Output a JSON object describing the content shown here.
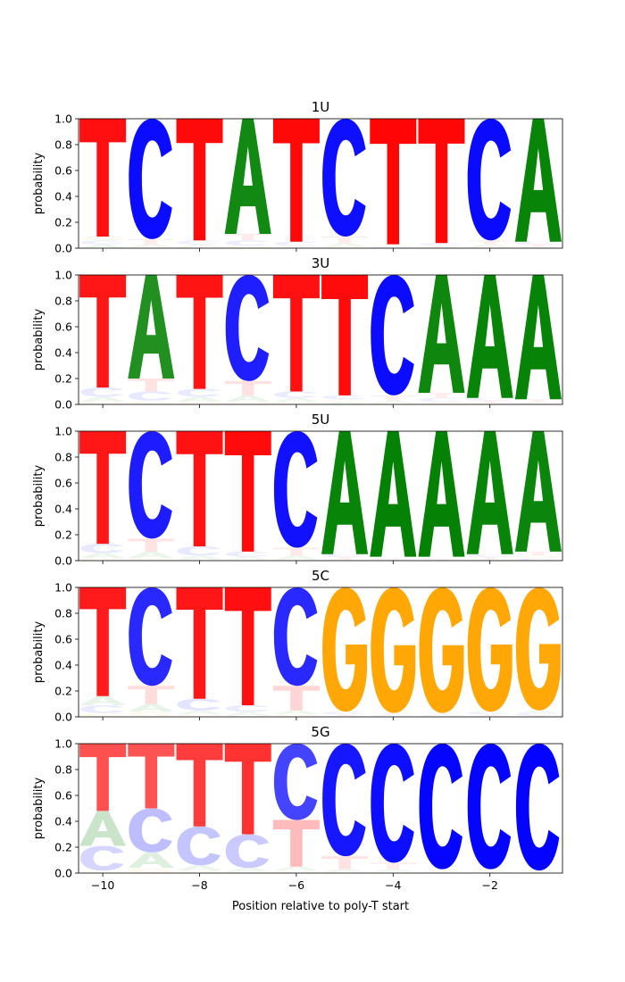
{
  "chart_data": {
    "type": "sequence-logo",
    "xlabel": "Position relative to poly-T start",
    "ylabel": "probability",
    "ylim": [
      0,
      1
    ],
    "y_ticks": [
      "0.0",
      "0.2",
      "0.4",
      "0.6",
      "0.8",
      "1.0"
    ],
    "x_ticks": [
      {
        "value": -10,
        "label": "−10"
      },
      {
        "value": -8,
        "label": "−8"
      },
      {
        "value": -6,
        "label": "−6"
      },
      {
        "value": -4,
        "label": "−4"
      },
      {
        "value": -2,
        "label": "−2"
      }
    ],
    "positions": [
      -10,
      -9,
      -8,
      -7,
      -6,
      -5,
      -4,
      -3,
      -2,
      -1
    ],
    "colors": {
      "A": "#008000",
      "C": "#0000ff",
      "G": "#ffa500",
      "T": "#ff0000"
    },
    "panels": [
      {
        "title": "1U",
        "columns": [
          {
            "T": 0.91,
            "A": 0.03,
            "C": 0.03,
            "G": 0.03
          },
          {
            "C": 0.93,
            "T": 0.04,
            "A": 0.02,
            "G": 0.01
          },
          {
            "T": 0.94,
            "C": 0.03,
            "A": 0.02,
            "G": 0.01
          },
          {
            "A": 0.89,
            "T": 0.05,
            "C": 0.04,
            "G": 0.02
          },
          {
            "T": 0.95,
            "C": 0.03,
            "A": 0.01,
            "G": 0.01
          },
          {
            "C": 0.91,
            "T": 0.05,
            "A": 0.03,
            "G": 0.01
          },
          {
            "T": 0.97,
            "C": 0.01,
            "A": 0.01,
            "G": 0.01
          },
          {
            "T": 0.96,
            "C": 0.02,
            "A": 0.01,
            "G": 0.01
          },
          {
            "C": 0.94,
            "T": 0.03,
            "A": 0.02,
            "G": 0.01
          },
          {
            "A": 0.95,
            "T": 0.02,
            "C": 0.02,
            "G": 0.01
          }
        ]
      },
      {
        "title": "3U",
        "columns": [
          {
            "T": 0.87,
            "C": 0.07,
            "A": 0.04,
            "G": 0.02
          },
          {
            "A": 0.8,
            "T": 0.1,
            "C": 0.07,
            "G": 0.03
          },
          {
            "T": 0.88,
            "C": 0.06,
            "A": 0.04,
            "G": 0.02
          },
          {
            "C": 0.82,
            "T": 0.11,
            "A": 0.05,
            "G": 0.02
          },
          {
            "T": 0.9,
            "C": 0.05,
            "A": 0.03,
            "G": 0.02
          },
          {
            "T": 0.93,
            "C": 0.03,
            "A": 0.02,
            "G": 0.02
          },
          {
            "C": 0.93,
            "T": 0.04,
            "A": 0.02,
            "G": 0.01
          },
          {
            "A": 0.91,
            "T": 0.04,
            "C": 0.03,
            "G": 0.02
          },
          {
            "A": 0.95,
            "T": 0.02,
            "C": 0.02,
            "G": 0.01
          },
          {
            "A": 0.96,
            "T": 0.02,
            "C": 0.01,
            "G": 0.01
          }
        ]
      },
      {
        "title": "5U",
        "columns": [
          {
            "T": 0.87,
            "C": 0.07,
            "A": 0.04,
            "G": 0.02
          },
          {
            "C": 0.83,
            "T": 0.1,
            "A": 0.05,
            "G": 0.02
          },
          {
            "T": 0.89,
            "C": 0.07,
            "A": 0.03,
            "G": 0.01
          },
          {
            "T": 0.93,
            "C": 0.04,
            "A": 0.02,
            "G": 0.01
          },
          {
            "C": 0.9,
            "T": 0.06,
            "A": 0.03,
            "G": 0.01
          },
          {
            "A": 0.95,
            "T": 0.02,
            "C": 0.02,
            "G": 0.01
          },
          {
            "A": 0.97,
            "T": 0.01,
            "C": 0.01,
            "G": 0.01
          },
          {
            "A": 0.97,
            "T": 0.01,
            "C": 0.01,
            "G": 0.01
          },
          {
            "A": 0.95,
            "T": 0.02,
            "C": 0.02,
            "G": 0.01
          },
          {
            "A": 0.93,
            "T": 0.03,
            "C": 0.02,
            "G": 0.02
          }
        ]
      },
      {
        "title": "5C",
        "columns": [
          {
            "T": 0.84,
            "A": 0.07,
            "C": 0.06,
            "G": 0.03
          },
          {
            "C": 0.76,
            "T": 0.14,
            "A": 0.06,
            "G": 0.04
          },
          {
            "T": 0.86,
            "C": 0.09,
            "A": 0.03,
            "G": 0.02
          },
          {
            "T": 0.91,
            "C": 0.05,
            "A": 0.03,
            "G": 0.01
          },
          {
            "C": 0.76,
            "T": 0.19,
            "A": 0.03,
            "G": 0.02
          },
          {
            "G": 0.96,
            "C": 0.02,
            "A": 0.01,
            "T": 0.01
          },
          {
            "G": 0.97,
            "C": 0.01,
            "A": 0.01,
            "T": 0.01
          },
          {
            "G": 0.97,
            "C": 0.01,
            "A": 0.01,
            "T": 0.01
          },
          {
            "G": 0.96,
            "C": 0.02,
            "A": 0.01,
            "T": 0.01
          },
          {
            "G": 0.95,
            "C": 0.02,
            "A": 0.02,
            "T": 0.01
          }
        ]
      },
      {
        "title": "5G",
        "columns": [
          {
            "T": 0.52,
            "A": 0.27,
            "C": 0.19,
            "G": 0.02
          },
          {
            "T": 0.5,
            "C": 0.34,
            "A": 0.12,
            "G": 0.04
          },
          {
            "T": 0.64,
            "C": 0.3,
            "A": 0.04,
            "G": 0.02
          },
          {
            "T": 0.7,
            "C": 0.26,
            "A": 0.03,
            "G": 0.01
          },
          {
            "C": 0.59,
            "T": 0.36,
            "A": 0.03,
            "G": 0.02
          },
          {
            "C": 0.87,
            "T": 0.1,
            "A": 0.02,
            "G": 0.01
          },
          {
            "C": 0.92,
            "T": 0.05,
            "A": 0.02,
            "G": 0.01
          },
          {
            "C": 0.97,
            "T": 0.01,
            "A": 0.01,
            "G": 0.01
          },
          {
            "C": 0.97,
            "T": 0.01,
            "A": 0.01,
            "G": 0.01
          },
          {
            "C": 0.98,
            "T": 0.01,
            "A": 0.005,
            "G": 0.005
          }
        ]
      }
    ]
  }
}
